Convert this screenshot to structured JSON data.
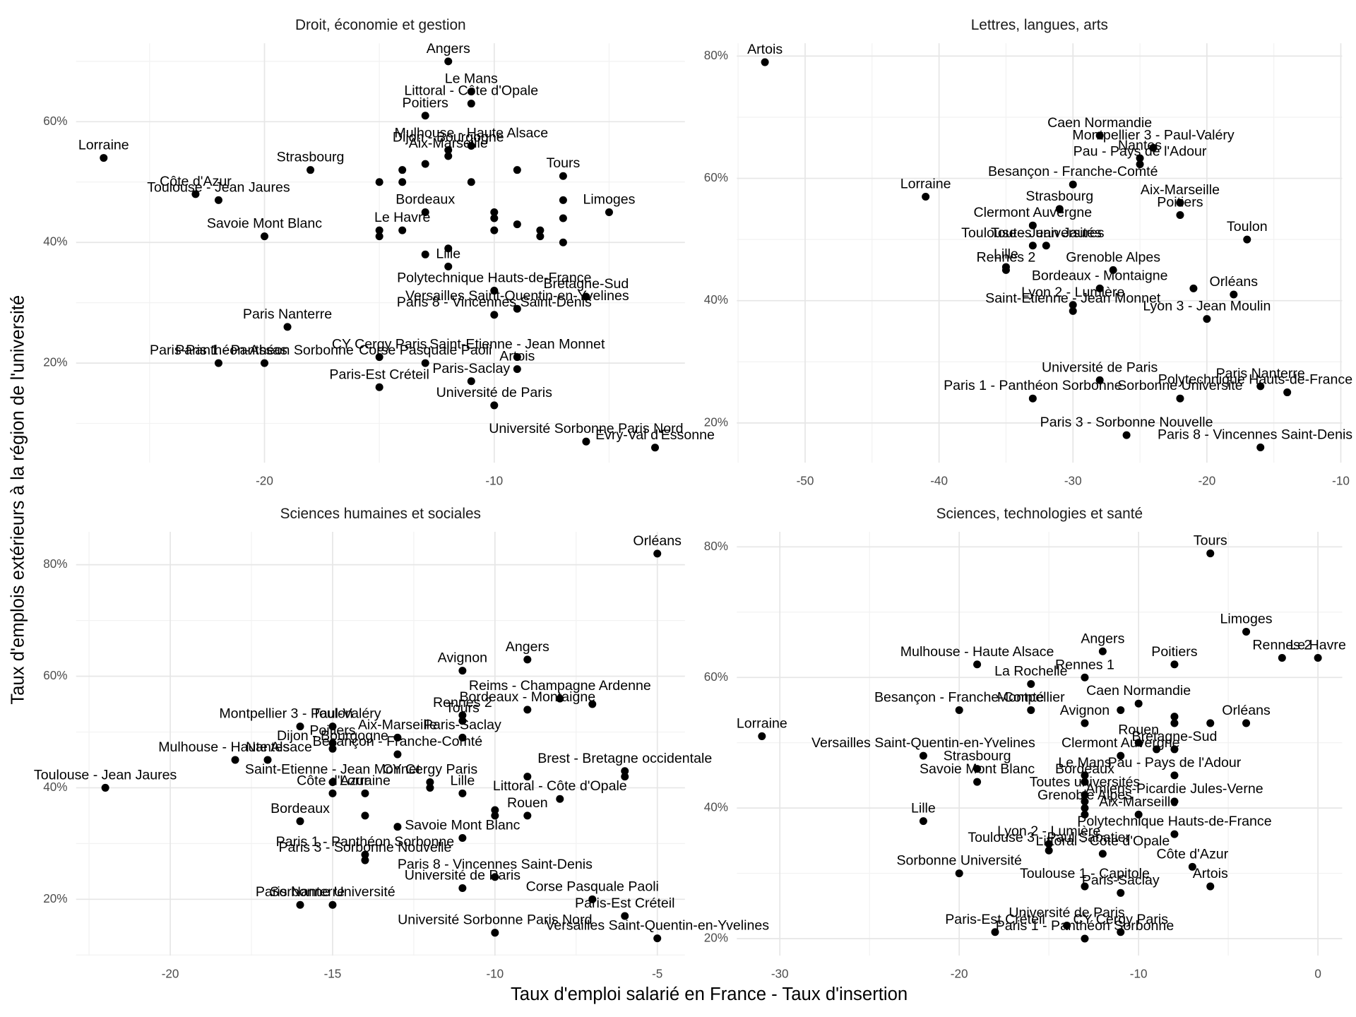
{
  "axis_titles": {
    "x": "Taux d'emploi salarié en France - Taux d'insertion",
    "y": "Taux d'emplois extérieurs à la région de l'université"
  },
  "chart_data": [
    {
      "type": "scatter",
      "title": "Droit, économie et gestion",
      "color": "#000000",
      "grid": true,
      "xlim": [
        -28.2,
        -1.7
      ],
      "ylim": [
        3.5,
        73
      ],
      "xticks": [
        -20,
        -10
      ],
      "yticks": [
        {
          "value": 20,
          "label": "20%"
        },
        {
          "value": 40,
          "label": "40%"
        },
        {
          "value": 60,
          "label": "60%"
        }
      ],
      "labels": [
        "Angers",
        "Le Mans",
        "Littoral - Côte d'Opale",
        "Poitiers",
        "Mulhouse - Haute Alsace",
        "Dijon - Bourgogne",
        "Aix-Marseille",
        "Lorraine",
        "Strasbourg",
        "Côte d'Azur",
        "Toulouse - Jean Jaures",
        "Tours",
        "Limoges",
        "Bordeaux",
        "Le Havre",
        "Savoie Mont Blanc",
        "Lille",
        "Polytechnique Hauts-de-France",
        "Versailles Saint-Quentin-en-Yvelines",
        "Bretagne-Sud",
        "Paris Nanterre",
        "Paris 8 - Vincennes Saint-Denis",
        "Paris 1 - Panthéon Sorbonne",
        "Paris-Panthéon-Assas",
        "CY Cergy Paris",
        "Corse Pasquale Paoli",
        "Paris-Est Créteil",
        "Paris-Saclay",
        "Saint-Etienne - Jean Monnet",
        "Artois",
        "Université de Paris",
        "Université Sorbonne Paris Nord",
        "Evry-Val d'Essonne",
        null,
        null,
        null,
        null,
        null,
        null,
        null,
        null,
        null,
        null,
        null,
        null,
        null,
        null,
        null,
        null,
        null,
        null,
        null
      ],
      "x": [
        -12,
        -11,
        -11,
        -13,
        -11,
        -12,
        -12,
        -27,
        -18,
        -23,
        -22,
        -7,
        -5,
        -13,
        -14,
        -20,
        -12,
        -10,
        -9,
        -6,
        -19,
        -10,
        -20,
        -22,
        -15,
        -13,
        -15,
        -11,
        -9,
        -9,
        -10,
        -6,
        -3,
        -15,
        -14,
        -14,
        -13,
        -11,
        -9,
        -7,
        -10,
        -10,
        -10,
        -9,
        -8,
        -8,
        -7,
        -7,
        -15,
        -15,
        -13,
        -12
      ],
      "y": [
        70,
        65,
        63,
        61,
        56,
        55.3,
        54.3,
        54,
        52,
        48,
        47,
        51,
        45,
        45,
        42,
        41,
        36,
        32,
        29,
        31,
        26,
        28,
        20,
        20,
        21,
        20,
        16,
        17,
        21,
        19,
        13,
        7,
        6,
        50,
        52,
        50,
        53,
        50,
        52,
        47,
        45,
        44,
        42,
        43,
        42,
        41,
        44,
        40,
        42,
        41,
        38,
        39
      ]
    },
    {
      "type": "scatter",
      "title": "Lettres, langues, arts",
      "color": "#000000",
      "grid": true,
      "xlim": [
        -55.1,
        -9.9
      ],
      "ylim": [
        13.5,
        82.1
      ],
      "xticks": [
        -50,
        -40,
        -30,
        -20,
        -10
      ],
      "yticks": [
        {
          "value": 20,
          "label": "20%"
        },
        {
          "value": 40,
          "label": "40%"
        },
        {
          "value": 60,
          "label": "60%"
        },
        {
          "value": 80,
          "label": "80%"
        }
      ],
      "labels": [
        "Artois",
        "Caen Normandie",
        "Montpellier 3 - Paul-Valéry",
        "Nantes",
        "Pau - Pays de l'Adour",
        "Besançon - Franche-Comté",
        "Lorraine",
        "Strasbourg",
        "Aix-Marseille",
        "Poitiers",
        "Clermont Auvergne",
        "Toulouse - Jean Jaures",
        "Toutes universités",
        "Toulon",
        "Lille",
        "Rennes 2",
        "Grenoble Alpes",
        "Bordeaux - Montaigne",
        null,
        "Orléans",
        "Lyon 2 - Lumière",
        "Saint-Etienne - Jean Monnet",
        "Lyon 3 - Jean Moulin",
        "Université de Paris",
        "Paris Nanterre",
        "Polytechnique Hauts-de-France",
        "Paris 1 - Panthéon Sorbonne",
        "Sorbonne Université",
        "Paris 3 - Sorbonne Nouvelle",
        "Paris 8 - Vincennes Saint-Denis"
      ],
      "x": [
        -53,
        -28,
        -24,
        -25,
        -25,
        -30,
        -41,
        -31,
        -22,
        -22,
        -33,
        -33,
        -32,
        -17,
        -35,
        -35,
        -27,
        -28,
        -21,
        -18,
        -30,
        -30,
        -20,
        -28,
        -16,
        -14,
        -33,
        -22,
        -26,
        -16
      ],
      "y": [
        79,
        67,
        65,
        63.3,
        62.3,
        59,
        57,
        55,
        56,
        54,
        52.3,
        49,
        49,
        50,
        45.5,
        45,
        45,
        42,
        42,
        41,
        39.3,
        38.3,
        37,
        27,
        26,
        25,
        24,
        24,
        18,
        16
      ]
    },
    {
      "type": "scatter",
      "title": "Sciences humaines et sociales",
      "color": "#000000",
      "grid": true,
      "xlim": [
        -22.9,
        -4.15
      ],
      "ylim": [
        9.9,
        85.9
      ],
      "xticks": [
        -20,
        -15,
        -10,
        -5
      ],
      "yticks": [
        {
          "value": 20,
          "label": "20%"
        },
        {
          "value": 40,
          "label": "40%"
        },
        {
          "value": 60,
          "label": "60%"
        },
        {
          "value": 80,
          "label": "80%"
        }
      ],
      "labels": [
        "Orléans",
        "Angers",
        "Avignon",
        "Reims - Champagne Ardenne",
        null,
        "Bordeaux - Montaigne",
        "Rennes 2",
        "Tours",
        "Toulon",
        "Montpellier 3 - Paul-Valéry",
        "Poitiers",
        "Aix-Marseille",
        "Dijon - Bourgogne",
        "Paris-Saclay",
        "Brest - Bretagne occidentale",
        null,
        "Mulhouse - Haute Alsace",
        "Nantes",
        "Besançon - Franche-Comté",
        "CY Cergy Paris",
        null,
        null,
        "Littoral - Côte d'Opale",
        "Toulouse - Jean Jaures",
        "Saint-Etienne - Jean Monnet",
        "Côte d'Azur",
        "Lorraine",
        "Lille",
        "Bordeaux",
        null,
        null,
        "Rouen",
        null,
        null,
        "Savoie Mont Blanc",
        "Paris 1 - Panthéon Sorbonne",
        "Paris 3 - Sorbonne Nouvelle",
        "Paris 8 - Vincennes Saint-Denis",
        "Corse Pasquale Paoli",
        "Sorbonne Université",
        "Paris Nanterre",
        "Université de Paris",
        "Université Sorbonne Paris Nord",
        "Paris-Est Créteil",
        "Versailles Saint-Quentin-en-Yvelines"
      ],
      "x": [
        -5,
        -9,
        -11,
        -8,
        -7,
        -9,
        -11,
        -11,
        -15,
        -16,
        -15,
        -13,
        -15,
        -11,
        -6,
        -6,
        -18,
        -17,
        -13,
        -12,
        -9,
        -12,
        -8,
        -22,
        -15,
        -15,
        -14,
        -11,
        -16,
        -10,
        -10,
        -9,
        -14,
        -13,
        -11,
        -14,
        -14,
        -10,
        -7,
        -15,
        -16,
        -11,
        -10,
        -6,
        -5
      ],
      "y": [
        82,
        63,
        61,
        56,
        55,
        54,
        53,
        52,
        51,
        51,
        48,
        49,
        47,
        49,
        43,
        42,
        45,
        45,
        46,
        41,
        42,
        40,
        38,
        40,
        41,
        39,
        39,
        39,
        34,
        36,
        35,
        35,
        35,
        33,
        31,
        28,
        27,
        24,
        20,
        19,
        19,
        22,
        14,
        17,
        13
      ]
    },
    {
      "type": "scatter",
      "title": "Sciences, technologies et santé",
      "color": "#000000",
      "grid": true,
      "xlim": [
        -32.4,
        1.35
      ],
      "ylim": [
        17.4,
        82.3
      ],
      "xticks": [
        -30,
        -20,
        -10,
        0
      ],
      "yticks": [
        {
          "value": 20,
          "label": "20%"
        },
        {
          "value": 40,
          "label": "40%"
        },
        {
          "value": 60,
          "label": "60%"
        },
        {
          "value": 80,
          "label": "80%"
        }
      ],
      "labels": [
        "Tours",
        "Limoges",
        "Angers",
        "Rennes 2",
        "Le Havre",
        "Mulhouse - Haute Alsace",
        "Poitiers",
        "Rennes 1",
        "La Rochelle",
        "Besançon - Franche-Comté",
        "Montpellier",
        "Caen Normandie",
        null,
        null,
        null,
        "Orléans",
        null,
        "Avignon",
        "Lorraine",
        "Rouen",
        null,
        "Bretagne-Sud",
        "Versailles Saint-Quentin-en-Yvelines",
        "Strasbourg",
        "Le Mans",
        "Clermont Auvergne",
        "Pau - Pays de l'Adour",
        "Savoie Mont Blanc",
        "Bordeaux",
        "Toutes universités",
        "Amiens-Picardie Jules-Verne",
        null,
        "Grenoble Alpes",
        null,
        "Aix-Marseille",
        "Lille",
        "Polytechnique Hauts-de-France",
        "Lyon 2 - Lumière",
        "Toulouse 3 - Paul Sabatier",
        "Littoral - Côte d'Opale",
        "Côte d'Azur",
        "Sorbonne Université",
        "Toulouse 1 - Capitole",
        "Paris-Saclay",
        "Artois",
        "Université de Paris",
        "Paris-Est Créteil",
        "Paris 1 - Panthéon Sorbonne",
        "CY Cergy Paris"
      ],
      "x": [
        -6,
        -4,
        -12,
        -2,
        0,
        -19,
        -8,
        -13,
        -16,
        -20,
        -16,
        -10,
        -11,
        -8,
        -8,
        -4,
        -6,
        -13,
        -31,
        -10,
        -9,
        -8,
        -22,
        -19,
        -13,
        -11,
        -8,
        -19,
        -13,
        -13,
        -8,
        -13,
        -13,
        -13,
        -10,
        -22,
        -8,
        -15,
        -15,
        -12,
        -7,
        -20,
        -13,
        -11,
        -6,
        -14,
        -18,
        -13,
        -11
      ],
      "y": [
        79,
        67,
        64,
        63,
        63,
        62,
        62,
        60,
        59,
        55,
        55,
        56,
        55,
        54,
        53,
        53,
        53,
        53,
        51,
        50,
        49,
        49,
        48,
        46,
        45,
        48,
        45,
        44,
        44,
        42,
        41,
        41,
        40,
        39,
        39,
        38,
        36,
        34.5,
        33.5,
        33,
        31,
        30,
        28,
        27,
        28,
        22,
        21,
        20,
        21
      ]
    }
  ]
}
